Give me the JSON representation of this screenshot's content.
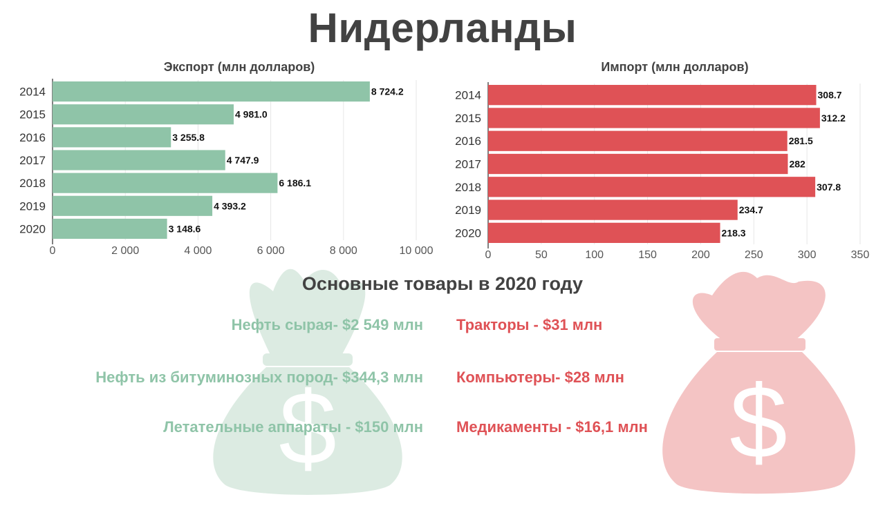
{
  "title": "Нидерланды",
  "colors": {
    "export": "#8fc4a8",
    "import": "#df5256",
    "bag_green": "#dcebe2",
    "bag_red": "#f4c4c4"
  },
  "icons": [
    "money-bag-icon",
    "money-bag-icon"
  ],
  "chart_data": [
    {
      "type": "bar",
      "orientation": "horizontal",
      "title": "Экспорт (млн долларов)",
      "categories": [
        "2014",
        "2015",
        "2016",
        "2017",
        "2018",
        "2019",
        "2020"
      ],
      "values": [
        8724.2,
        4981.0,
        3255.8,
        4747.9,
        6186.1,
        4393.2,
        3148.6
      ],
      "value_labels": [
        "8 724.2",
        "4 981.0",
        "3 255.8",
        "4 747.9",
        "6 186.1",
        "4 393.2",
        "3 148.6"
      ],
      "xlim": [
        0,
        10000
      ],
      "xticks": [
        0,
        2000,
        4000,
        6000,
        8000,
        10000
      ],
      "xtick_labels": [
        "0",
        "2 000",
        "4 000",
        "6 000",
        "8 000",
        "10 000"
      ],
      "grid": true,
      "color": "#8fc4a8"
    },
    {
      "type": "bar",
      "orientation": "horizontal",
      "title": "Импорт (млн долларов)",
      "categories": [
        "2014",
        "2015",
        "2016",
        "2017",
        "2018",
        "2019",
        "2020"
      ],
      "values": [
        308.7,
        312.2,
        281.5,
        282,
        307.8,
        234.7,
        218.3
      ],
      "value_labels": [
        "308.7",
        "312.2",
        "281.5",
        "282",
        "307.8",
        "234.7",
        "218.3"
      ],
      "xlim": [
        0,
        350
      ],
      "xticks": [
        0,
        50,
        100,
        150,
        200,
        250,
        300,
        350
      ],
      "xtick_labels": [
        "0",
        "50",
        "100",
        "150",
        "200",
        "250",
        "300",
        "350"
      ],
      "grid": true,
      "color": "#df5256"
    }
  ],
  "goods": {
    "heading": "Основные товары в 2020 году",
    "export": [
      "Нефть сырая- $2 549 млн",
      "Нефть из битуминозных пород- $344,3 млн",
      "Летательные аппараты - $150 млн"
    ],
    "import": [
      "Тракторы - $31 млн",
      "Компьютеры- $28 млн",
      "Медикаменты  - $16,1 млн"
    ]
  }
}
